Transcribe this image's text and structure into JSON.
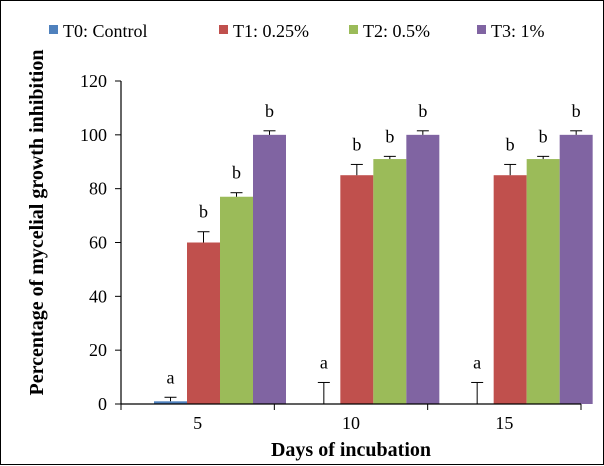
{
  "chart_data": {
    "type": "bar",
    "categories": [
      "5",
      "10",
      "15"
    ],
    "series": [
      {
        "name": "T0: Control",
        "color": "#4f81bd",
        "values": [
          1,
          0,
          0
        ],
        "errors": [
          1.5,
          8,
          8
        ],
        "labels": [
          "a",
          "a",
          "a"
        ]
      },
      {
        "name": "T1: 0.25%",
        "color": "#c0504d",
        "values": [
          60,
          85,
          85
        ],
        "errors": [
          4,
          4,
          4
        ],
        "labels": [
          "b",
          "b",
          "b"
        ]
      },
      {
        "name": "T2: 0.5%",
        "color": "#9bbb59",
        "values": [
          77,
          91,
          91
        ],
        "errors": [
          1.5,
          1,
          1
        ],
        "labels": [
          "b",
          "b",
          "b"
        ]
      },
      {
        "name": "T3: 1%",
        "color": "#8064a2",
        "values": [
          100,
          100,
          100
        ],
        "errors": [
          1.5,
          1.5,
          1.5
        ],
        "labels": [
          "b",
          "b",
          "b"
        ]
      }
    ],
    "xlabel": "Days of incubation",
    "ylabel": "Percentage of mycelial growth inhibition",
    "ylim": [
      0,
      120
    ],
    "yticks": [
      0,
      20,
      40,
      60,
      80,
      100,
      120
    ],
    "grid": false,
    "legend_position": "top"
  }
}
